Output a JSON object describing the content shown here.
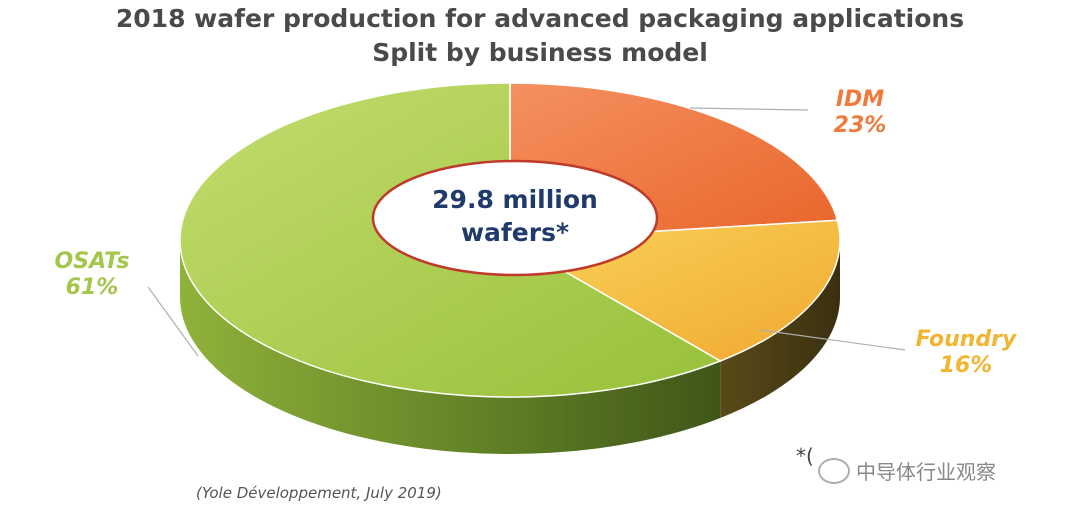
{
  "chart_data": {
    "type": "pie",
    "title": "2018 wafer production for advanced packaging applications",
    "subtitle": "Split by business model",
    "center_label": [
      "29.8 million",
      "wafers*"
    ],
    "slices": [
      {
        "label": "IDM",
        "value": 23,
        "value_label": "23%",
        "color": "#ef7b3c"
      },
      {
        "label": "Foundry",
        "value": 16,
        "value_label": "16%",
        "color": "#f7b53a"
      },
      {
        "label": "OSATs",
        "value": 61,
        "value_label": "61%",
        "color": "#a7cc4b"
      }
    ],
    "label_colors": {
      "IDM": "#ef7a3c",
      "Foundry": "#f2b531",
      "OSATs": "#a4c64a"
    }
  },
  "source": "(Yole Développement, July 2019)",
  "footnote": "*(",
  "watermark": "中导体行业观察",
  "colors": {
    "title": "#4a4a4a",
    "center_text": "#1f3a6b"
  }
}
